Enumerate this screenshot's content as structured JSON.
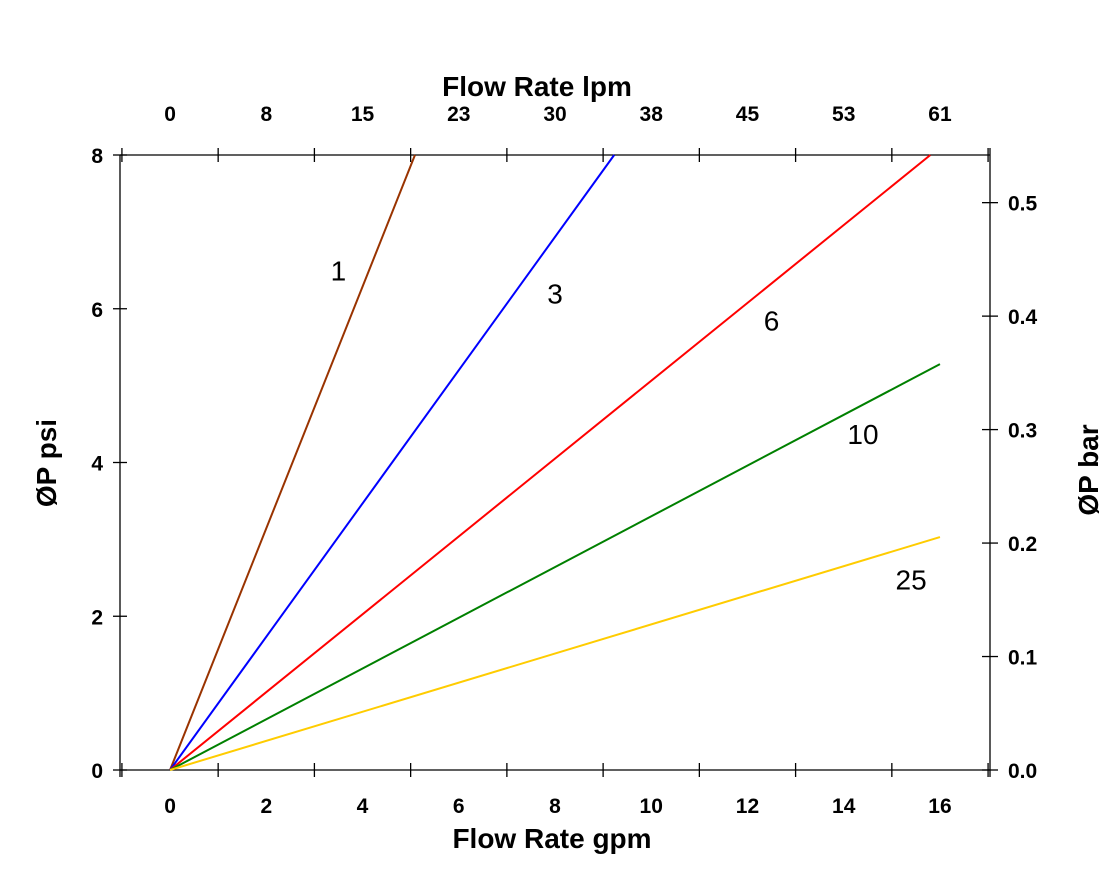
{
  "chart_data": {
    "type": "line",
    "title": "",
    "xlabel": "Flow Rate gpm",
    "x2label": "Flow Rate lpm",
    "ylabel": "ØP psi",
    "y2label": "ØP bar",
    "xlim": [
      -1.04,
      17.04
    ],
    "ylim": [
      0,
      8
    ],
    "y2lim": [
      0,
      0.542
    ],
    "grid": false,
    "x_ticks": [
      0,
      2,
      4,
      6,
      8,
      10,
      12,
      14,
      16
    ],
    "x_minor_ticks": [
      -1,
      1,
      3,
      5,
      7,
      9,
      11,
      13,
      15,
      17
    ],
    "x2_tick_labels": [
      "0",
      "8",
      "15",
      "23",
      "30",
      "38",
      "45",
      "53",
      "61"
    ],
    "y_ticks": [
      0,
      2,
      4,
      6,
      8
    ],
    "y2_ticks": [
      "0.0",
      "0.1",
      "0.2",
      "0.3",
      "0.4",
      "0.5"
    ],
    "series": [
      {
        "name": "1",
        "color": "#993300",
        "x": [
          0,
          5.09
        ],
        "y": [
          0,
          8
        ],
        "label_at": [
          3.5,
          6.5
        ]
      },
      {
        "name": "3",
        "color": "#0000ff",
        "x": [
          0,
          9.23
        ],
        "y": [
          0,
          8
        ],
        "label_at": [
          8.0,
          6.2
        ]
      },
      {
        "name": "6",
        "color": "#ff0000",
        "x": [
          0,
          15.8
        ],
        "y": [
          0,
          8
        ],
        "label_at": [
          12.5,
          5.85
        ]
      },
      {
        "name": "10",
        "color": "#008000",
        "x": [
          0,
          16
        ],
        "y": [
          0,
          5.28
        ],
        "label_at": [
          14.4,
          4.37
        ]
      },
      {
        "name": "25",
        "color": "#ffcc00",
        "x": [
          0,
          16
        ],
        "y": [
          0,
          3.03
        ],
        "label_at": [
          15.4,
          2.48
        ]
      }
    ]
  }
}
